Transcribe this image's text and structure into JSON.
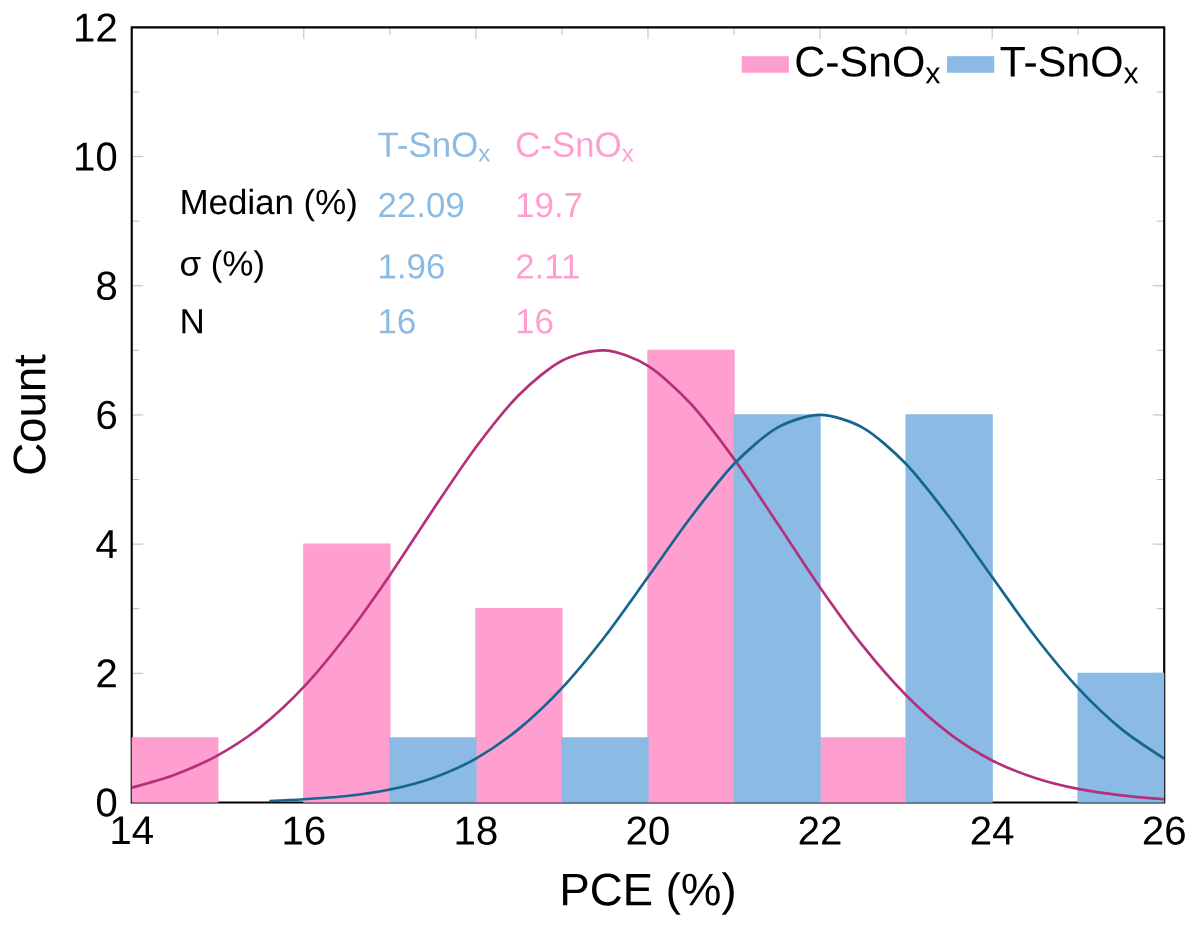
{
  "chart_data": {
    "type": "bar",
    "xlabel": "PCE (%)",
    "ylabel": "Count",
    "xlim": [
      14,
      26
    ],
    "xticks": [
      14,
      16,
      18,
      20,
      22,
      24,
      26
    ],
    "ylim": [
      0,
      12
    ],
    "yticks": [
      0,
      2,
      4,
      6,
      8,
      10,
      12
    ],
    "grid": false,
    "legend": "top right",
    "annotations": [
      "T-SnO$_{x}$",
      "C-SnO$_{x}$",
      "Median (%)",
      "22.09",
      "19.7",
      "σ (%)",
      "1.96",
      "2.11",
      "N",
      "16",
      "16"
    ],
    "series": [
      {
        "name": "C-SnO$_{x}$",
        "color": "#ff9fcf",
        "x": [
          14.5,
          16.5,
          18.5,
          20.5,
          22.5
        ],
        "values": [
          1,
          4,
          3,
          7,
          1
        ]
      },
      {
        "name": "T-SnO$_{x}$",
        "color": "#8bbbe4",
        "x": [
          17.5,
          19.5,
          21.5,
          23.5,
          25.5
        ],
        "values": [
          1,
          1,
          6,
          6,
          2
        ]
      },
      {
        "type": "line",
        "color": "#b5307a",
        "x": [
          14,
          14.5,
          15,
          15.5,
          16,
          16.5,
          17,
          17.5,
          18,
          18.5,
          19,
          19.5,
          20,
          20.5,
          21,
          21.5,
          22,
          22.5,
          23,
          23.5,
          24,
          24.5,
          25,
          25.5,
          26
        ],
        "values": [
          0.23,
          0.43,
          0.73,
          1.17,
          1.79,
          2.59,
          3.52,
          4.53,
          5.5,
          6.31,
          6.84,
          7.0,
          6.76,
          6.17,
          5.32,
          4.33,
          3.33,
          2.42,
          1.66,
          1.07,
          0.65,
          0.38,
          0.21,
          0.11,
          0.05
        ]
      },
      {
        "type": "line",
        "color": "#15658f",
        "x": [
          15.6,
          16,
          16.5,
          17,
          17.5,
          18,
          18.5,
          19,
          19.5,
          20,
          20.5,
          21,
          21.5,
          22,
          22.5,
          23,
          23.5,
          24,
          24.5,
          25,
          25.5,
          26
        ],
        "values": [
          0.02,
          0.05,
          0.1,
          0.2,
          0.38,
          0.68,
          1.14,
          1.77,
          2.57,
          3.49,
          4.42,
          5.24,
          5.8,
          6.0,
          5.8,
          5.24,
          4.42,
          3.49,
          2.57,
          1.77,
          1.14,
          0.68
        ]
      }
    ]
  }
}
